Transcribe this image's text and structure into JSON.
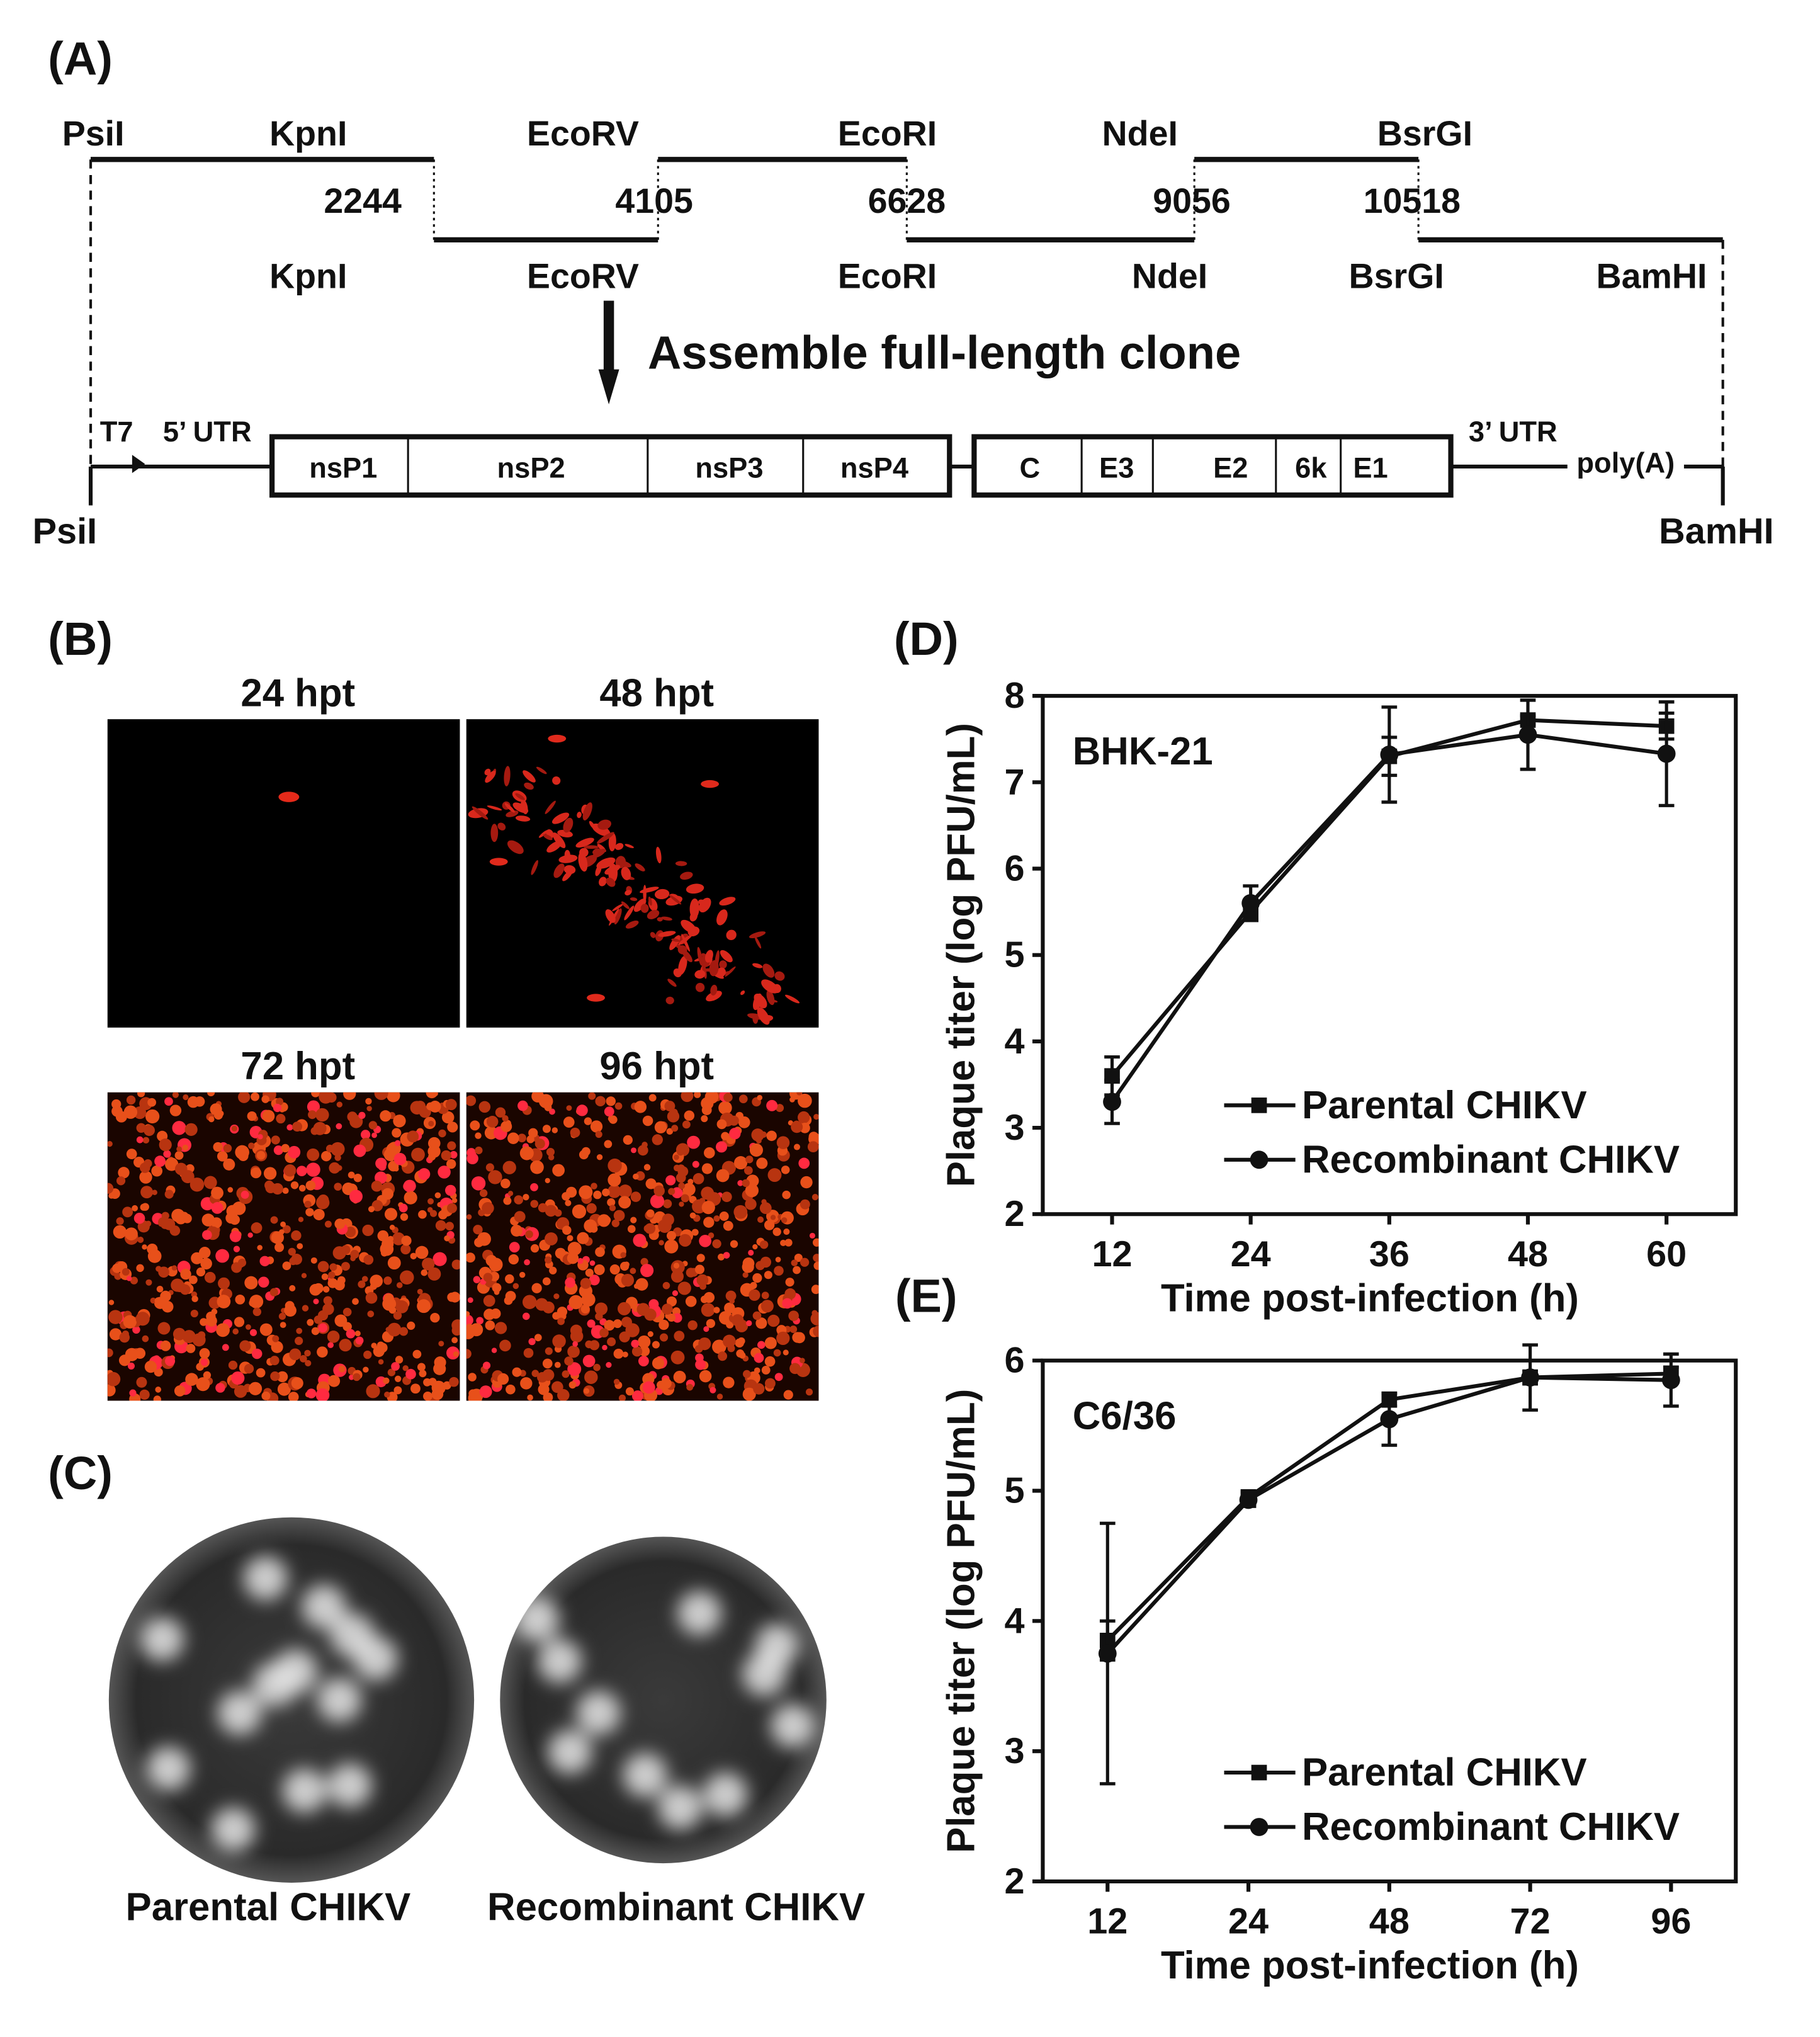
{
  "panel_labels": {
    "a": "(A)",
    "b": "(B)",
    "c": "(C)",
    "d": "(D)",
    "e": "(E)"
  },
  "diagram": {
    "fragment_top_sites": [
      "PsiI",
      "KpnI",
      "EcoRV",
      "EcoRI",
      "NdeI",
      "BsrGI"
    ],
    "fragment_positions": [
      "2244",
      "4105",
      "6628",
      "9056",
      "10518"
    ],
    "fragment_bottom_sites": [
      "KpnI",
      "EcoRV",
      "EcoRI",
      "NdeI",
      "BsrGI",
      "BamHI"
    ],
    "assembly_label": "Assemble full-length clone",
    "genome": {
      "promoter": "T7",
      "utr5": "5’ UTR",
      "utr3": "3’ UTR",
      "polya": "poly(A)",
      "left_site": "PsiI",
      "right_site": "BamHI",
      "nonstructural": [
        "nsP1",
        "nsP2",
        "nsP3",
        "nsP4"
      ],
      "structural": [
        "C",
        "E3",
        "E2",
        "6k",
        "E1"
      ]
    }
  },
  "micrographs": {
    "labels": [
      "24 hpt",
      "48 hpt",
      "72 hpt",
      "96 hpt"
    ]
  },
  "plaques": {
    "labels": [
      "Parental CHIKV",
      "Recombinant CHIKV"
    ]
  },
  "chart_data": [
    {
      "type": "line",
      "annotation": "BHK-21",
      "x": [
        12,
        24,
        36,
        48,
        60
      ],
      "xlim": [
        6,
        66
      ],
      "xticks": [
        12,
        24,
        36,
        48,
        60
      ],
      "ylim": [
        2,
        8
      ],
      "yticks": [
        2,
        3,
        4,
        5,
        6,
        7,
        8
      ],
      "xlabel": "Time post-infection (h)",
      "ylabel": "Plaque titer (log PFU/mL)",
      "legend": "lower right",
      "series": [
        {
          "name": "Parental CHIKV",
          "color": "#111111",
          "marker": "square",
          "values": [
            3.6,
            5.5,
            7.3,
            7.72,
            7.65
          ],
          "errors": [
            0.22,
            0.1,
            0.22,
            0.05,
            0.15
          ]
        },
        {
          "name": "Recombinant CHIKV",
          "color": "#111111",
          "marker": "circle",
          "values": [
            3.3,
            5.6,
            7.32,
            7.55,
            7.33
          ],
          "errors": [
            0.25,
            0.2,
            0.55,
            0.4,
            0.6
          ]
        }
      ]
    },
    {
      "type": "line",
      "annotation": "C6/36",
      "categories": [
        "12",
        "24",
        "48",
        "72",
        "96"
      ],
      "ylim": [
        2,
        6
      ],
      "yticks": [
        2,
        3,
        4,
        5,
        6
      ],
      "xlabel": "Time post-infection (h)",
      "ylabel": "Plaque titer (log PFU/mL)",
      "legend": "lower right",
      "series": [
        {
          "name": "Parental CHIKV",
          "color": "#111111",
          "marker": "square",
          "values": [
            3.85,
            4.95,
            5.7,
            5.87,
            5.9
          ],
          "errors": [
            0.15,
            0.05,
            0.05,
            0.05,
            0.05
          ]
        },
        {
          "name": "Recombinant CHIKV",
          "color": "#111111",
          "marker": "circle",
          "values": [
            3.75,
            4.93,
            5.55,
            5.87,
            5.85
          ],
          "errors": [
            1.0,
            0.05,
            0.2,
            0.25,
            0.2
          ]
        }
      ]
    }
  ]
}
